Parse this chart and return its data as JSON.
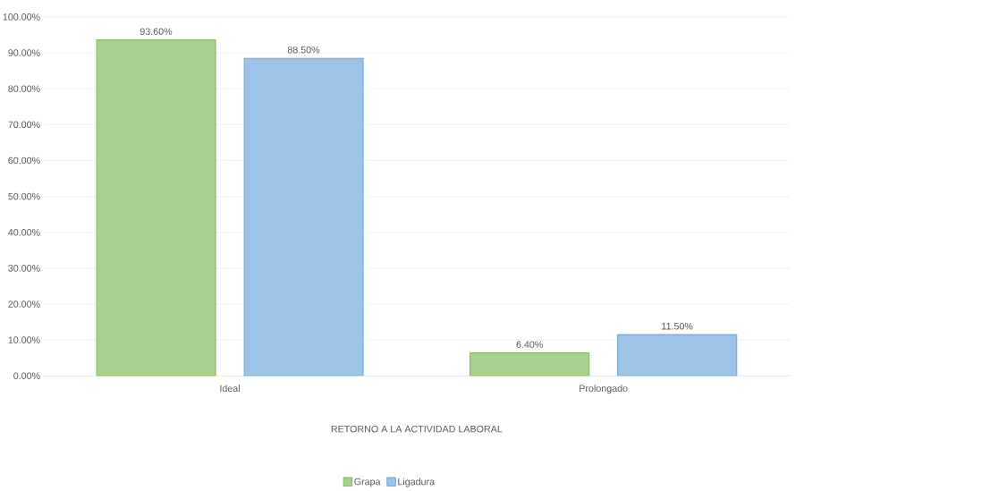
{
  "chart_data": {
    "type": "bar",
    "xlabel": "RETORNO A LA ACTIVIDAD LABORAL",
    "categories": [
      "Ideal",
      "Prolongado"
    ],
    "series": [
      {
        "name": "Grapa",
        "color": "#a9d18e",
        "values": [
          93.6,
          6.4
        ],
        "value_labels": [
          "93.60%",
          "6.40%"
        ]
      },
      {
        "name": "Ligadura",
        "color": "#9dc3e6",
        "values": [
          88.5,
          11.5
        ],
        "value_labels": [
          "88.50%",
          "11.50%"
        ]
      }
    ],
    "ylim": [
      0,
      100
    ],
    "yticks": [
      {
        "value": 0,
        "label": "0.00%"
      },
      {
        "value": 10,
        "label": "10.00%"
      },
      {
        "value": 20,
        "label": "20.00%"
      },
      {
        "value": 30,
        "label": "30.00%"
      },
      {
        "value": 40,
        "label": "40.00%"
      },
      {
        "value": 50,
        "label": "50.00%"
      },
      {
        "value": 60,
        "label": "60.00%"
      },
      {
        "value": 70,
        "label": "70.00%"
      },
      {
        "value": 80,
        "label": "80.00%"
      },
      {
        "value": 90,
        "label": "90.00%"
      },
      {
        "value": 100,
        "label": "100.00%"
      }
    ],
    "grid": "y",
    "legend": "bottom"
  }
}
